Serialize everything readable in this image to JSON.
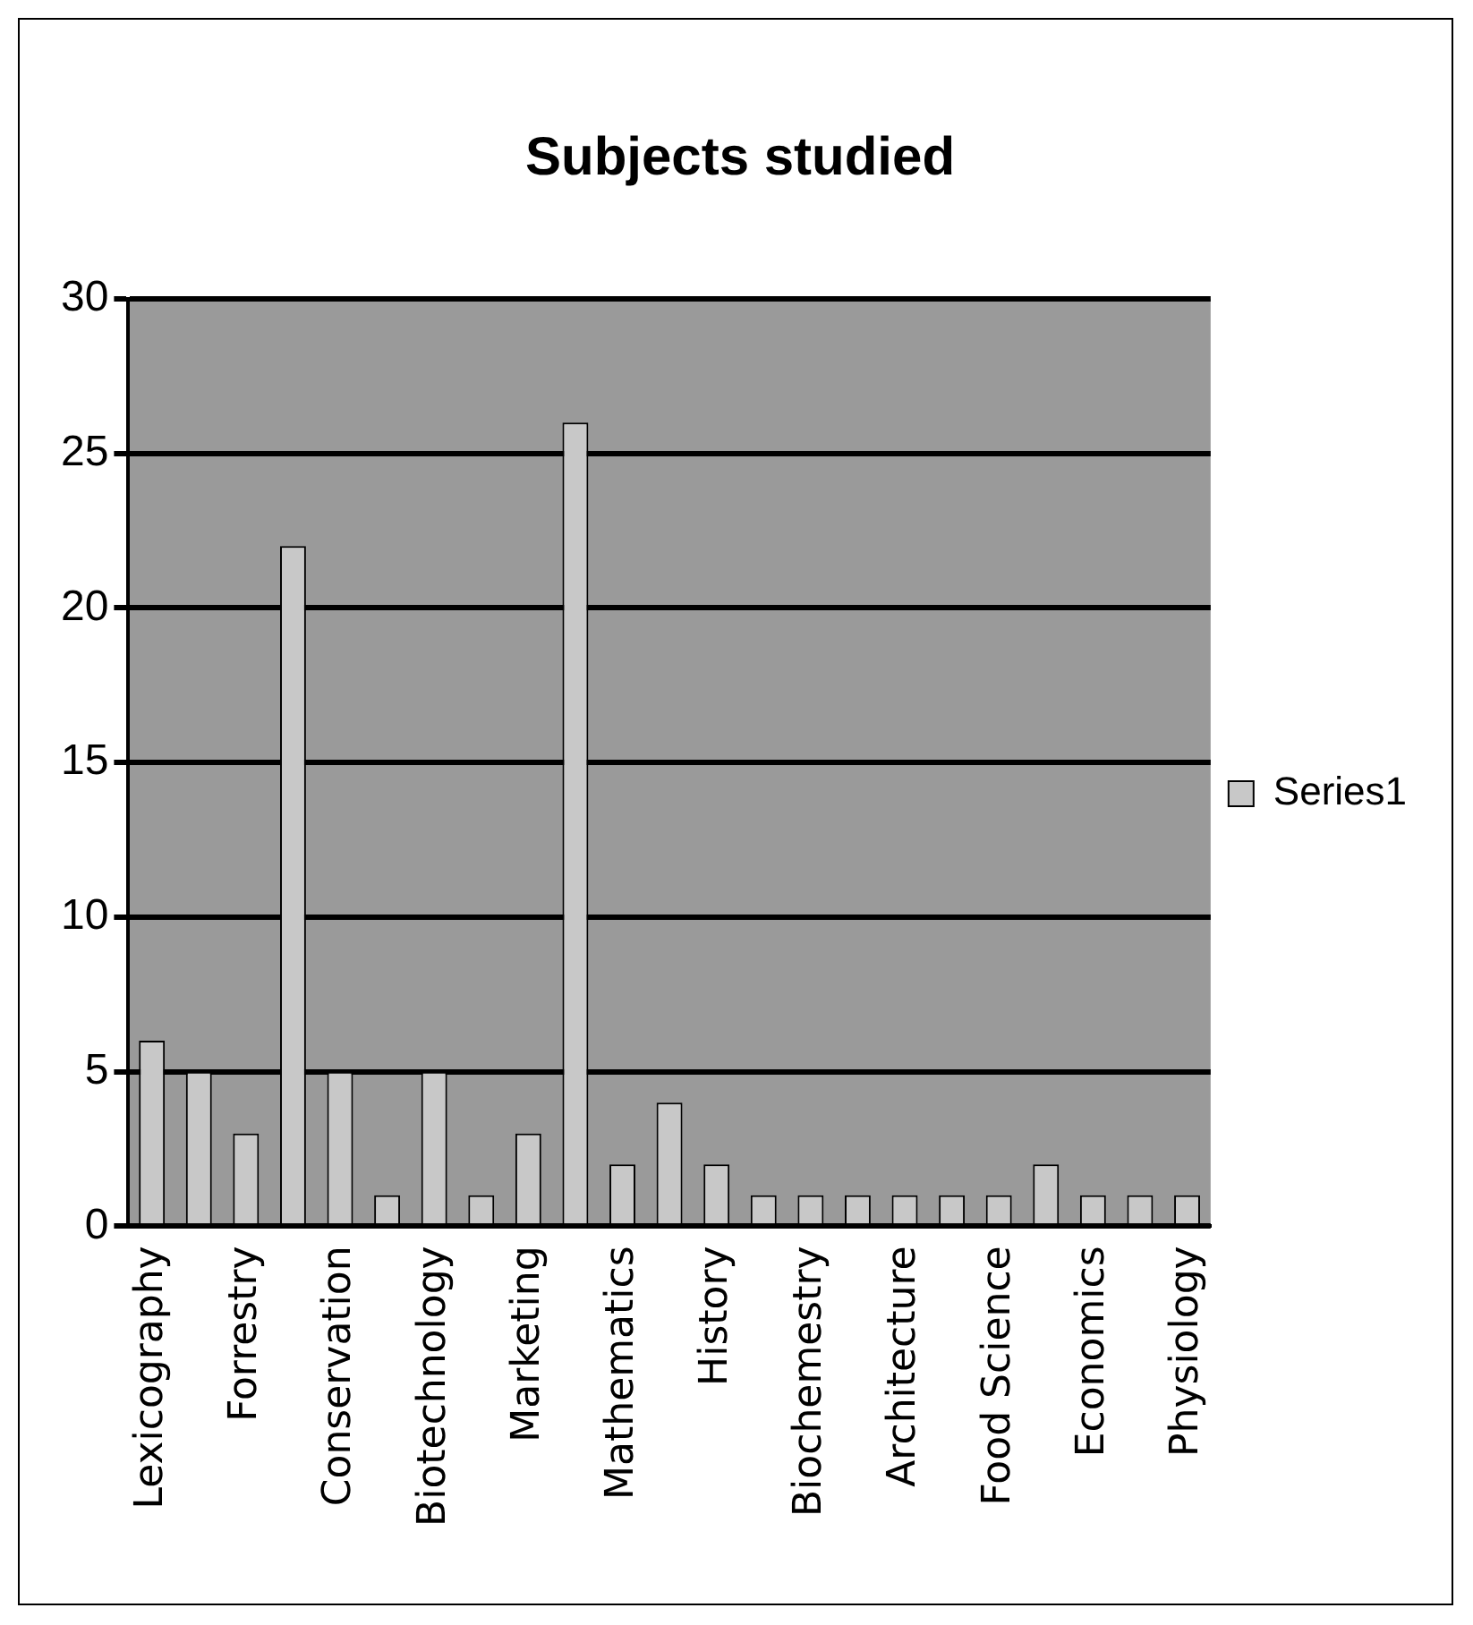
{
  "chart_data": {
    "type": "bar",
    "title": "Subjects studied",
    "categories": [
      "Lexicography",
      null,
      "Forrestry",
      null,
      "Conservation",
      null,
      "Biotechnology",
      null,
      "Marketing",
      null,
      "Mathematics",
      null,
      "History",
      null,
      "Biochemestry",
      null,
      "Architecture",
      null,
      "Food Science",
      null,
      "Economics",
      null,
      "Physiology"
    ],
    "series": [
      {
        "name": "Series1",
        "color": "#c8c8c8",
        "values": [
          6,
          5,
          3,
          22,
          5,
          1,
          5,
          1,
          3,
          26,
          2,
          4,
          2,
          1,
          1,
          1,
          1,
          1,
          1,
          2,
          1,
          1,
          1
        ]
      }
    ],
    "ylim": [
      0,
      30
    ],
    "yticks": [
      0,
      5,
      10,
      15,
      20,
      25,
      30
    ],
    "grid": "y",
    "legend": "right"
  }
}
